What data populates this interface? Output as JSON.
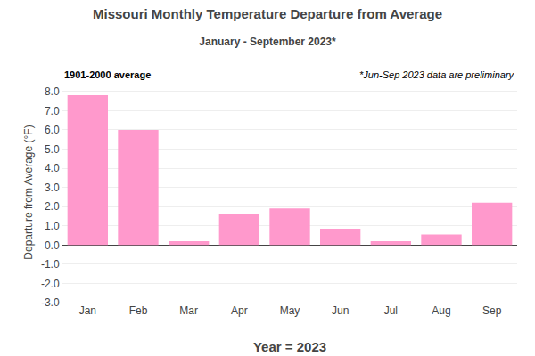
{
  "chart_data": {
    "type": "bar",
    "title": "Missouri Monthly Temperature Departure from Average",
    "subtitle": "January - September 2023*",
    "x_label": "Year = 2023",
    "y_label": "Departure from Average (°F)",
    "categories": [
      "Jan",
      "Feb",
      "Mar",
      "Apr",
      "May",
      "Jun",
      "Jul",
      "Aug",
      "Sep"
    ],
    "values": [
      7.8,
      6.0,
      0.2,
      1.6,
      1.9,
      0.85,
      0.2,
      0.55,
      2.2
    ],
    "color": "#FF99CC",
    "ylim": [
      -3.0,
      8.5
    ],
    "yticks": [
      {
        "value": -3.0,
        "label": "-3.0"
      },
      {
        "value": -2.0,
        "label": "-2.0"
      },
      {
        "value": -1.0,
        "label": "-1.0"
      },
      {
        "value": 0.0,
        "label": "0.0"
      },
      {
        "value": 1.0,
        "label": "1.0"
      },
      {
        "value": 2.0,
        "label": "2.0"
      },
      {
        "value": 3.0,
        "label": "3.0"
      },
      {
        "value": 4.0,
        "label": "4.0"
      },
      {
        "value": 5.0,
        "label": "5.0"
      },
      {
        "value": 6.0,
        "label": "6.0"
      },
      {
        "value": 7.0,
        "label": "7.0"
      },
      {
        "value": 8.0,
        "label": "8.0"
      }
    ],
    "grid": true,
    "annotations": [
      "1901-2000 average",
      "*Jun-Sep 2023 data are preliminary"
    ]
  }
}
